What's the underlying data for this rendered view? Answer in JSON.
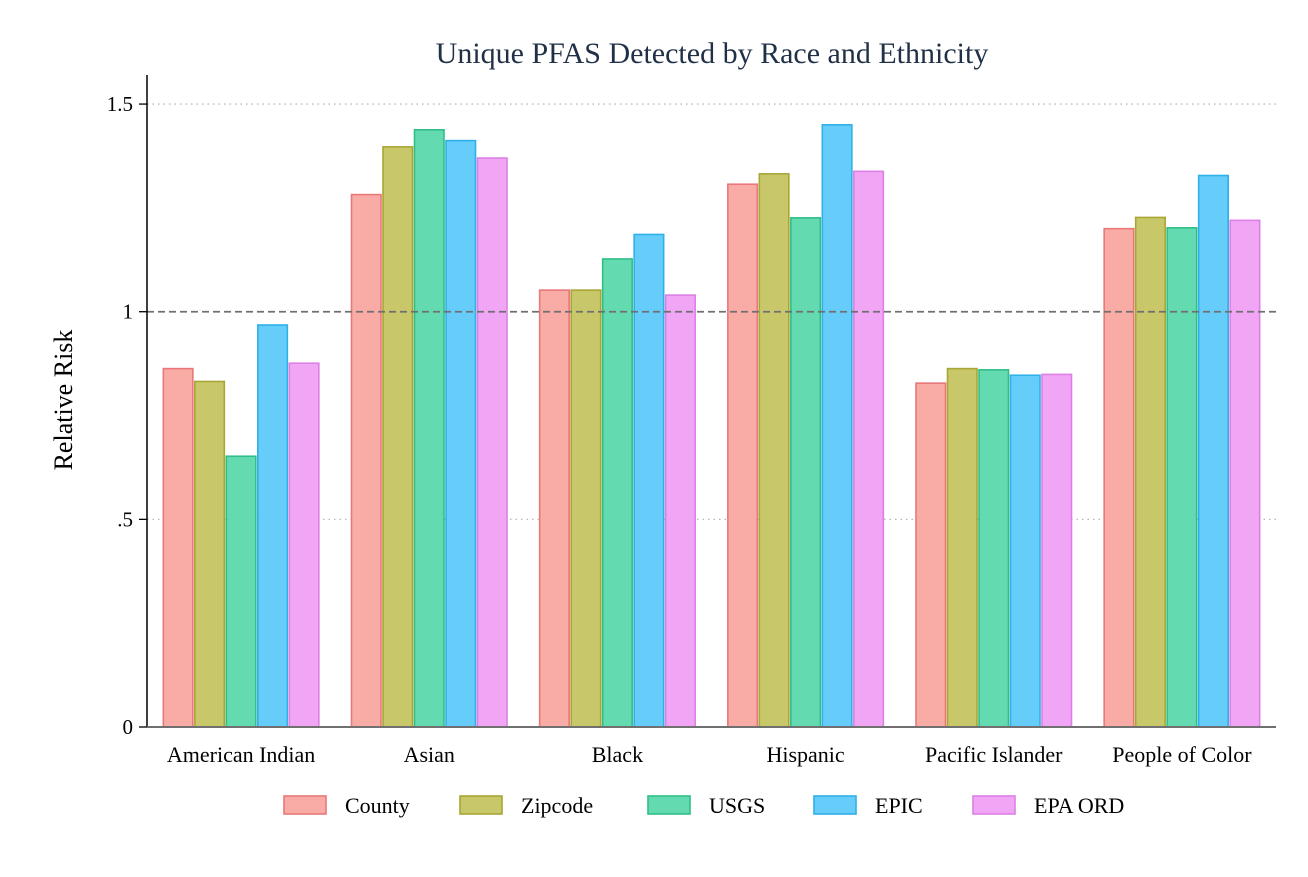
{
  "chart_data": {
    "type": "bar",
    "title": "Unique PFAS Detected by Race and Ethnicity",
    "xlabel": "",
    "ylabel": "Relative Risk",
    "ylim": [
      0,
      1.57
    ],
    "yticks": [
      {
        "value": 0,
        "label": "0"
      },
      {
        "value": 0.5,
        "label": ".5"
      },
      {
        "value": 1,
        "label": "1"
      },
      {
        "value": 1.5,
        "label": "1.5"
      }
    ],
    "reference_line": 1,
    "grid": "dotted horizontal",
    "legend_position": "bottom",
    "categories": [
      "American Indian",
      "Asian",
      "Black",
      "Hispanic",
      "Pacific Islander",
      "People of Color"
    ],
    "series": [
      {
        "name": "County",
        "fill": "#f9aca5",
        "stroke": "#e8787a",
        "values": [
          0.863,
          1.282,
          1.052,
          1.307,
          0.828,
          1.2
        ]
      },
      {
        "name": "Zipcode",
        "fill": "#c8c76a",
        "stroke": "#a9a635",
        "values": [
          0.832,
          1.397,
          1.052,
          1.332,
          0.863,
          1.227
        ]
      },
      {
        "name": "USGS",
        "fill": "#64dab0",
        "stroke": "#2fbf86",
        "values": [
          0.652,
          1.438,
          1.127,
          1.226,
          0.86,
          1.202
        ]
      },
      {
        "name": "EPIC",
        "fill": "#66cdfb",
        "stroke": "#2eb0e8",
        "values": [
          0.968,
          1.412,
          1.186,
          1.45,
          0.847,
          1.328
        ]
      },
      {
        "name": "EPA ORD",
        "fill": "#f0a6f4",
        "stroke": "#dc80e5",
        "values": [
          0.876,
          1.37,
          1.04,
          1.338,
          0.849,
          1.22
        ]
      }
    ]
  }
}
